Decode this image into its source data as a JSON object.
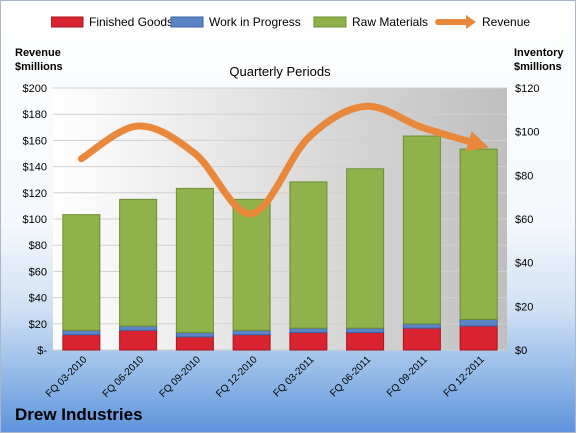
{
  "company": "Drew Industries",
  "chart_data": {
    "type": "bar",
    "subtype": "stacked-bar-with-line",
    "title": "Quarterly Periods",
    "categories": [
      "FQ 03-2010",
      "FQ 06-2010",
      "FQ 09-2010",
      "FQ 12-2010",
      "FQ 03-2011",
      "FQ 06-2011",
      "FQ 09-2011",
      "FQ 12-2011"
    ],
    "series": [
      {
        "name": "Finished Goods",
        "axis": "right",
        "color": "#d9232e",
        "values": [
          7,
          9,
          6,
          7,
          8,
          8,
          10,
          11
        ]
      },
      {
        "name": "Work in Progress",
        "axis": "right",
        "color": "#5b84c6",
        "values": [
          2,
          2,
          2,
          2,
          2,
          2,
          2,
          3
        ]
      },
      {
        "name": "Raw Materials",
        "axis": "right",
        "color": "#8fb24a",
        "values": [
          53,
          58,
          66,
          60,
          67,
          73,
          86,
          78
        ]
      },
      {
        "name": "Revenue",
        "axis": "left",
        "type": "line",
        "color": "#e9883a",
        "values": [
          146,
          171,
          150,
          104,
          162,
          186,
          170,
          157
        ]
      }
    ],
    "left_axis": {
      "label": "Revenue\n$millions",
      "ylim": [
        0,
        200
      ],
      "tick_labels": [
        "$-",
        "$20",
        "$40",
        "$60",
        "$80",
        "$100",
        "$120",
        "$140",
        "$160",
        "$180",
        "$200"
      ]
    },
    "right_axis": {
      "label": "Inventory\n$millions",
      "ylim": [
        0,
        120
      ],
      "tick_labels": [
        "$0",
        "$20",
        "$40",
        "$60",
        "$80",
        "$100",
        "$120"
      ]
    },
    "grid": true,
    "legend_position": "top"
  }
}
